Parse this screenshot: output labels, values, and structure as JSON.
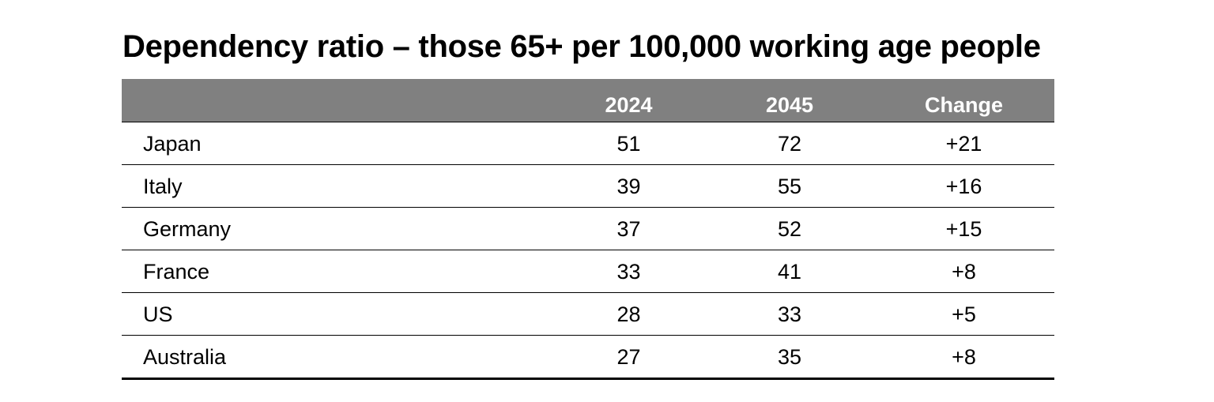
{
  "title": "Dependency ratio – those 65+ per 100,000 working age people",
  "colors": {
    "header_bg": "#808080",
    "header_text": "#ffffff",
    "rule": "#000000"
  },
  "chart_data": {
    "type": "table",
    "title": "Dependency ratio – those 65+ per 100,000 working age people",
    "columns": [
      "",
      "2024",
      "2045",
      "Change"
    ],
    "rows": [
      {
        "country": "Japan",
        "y2024": "51",
        "y2045": "72",
        "change": "+21"
      },
      {
        "country": "Italy",
        "y2024": "39",
        "y2045": "55",
        "change": "+16"
      },
      {
        "country": "Germany",
        "y2024": "37",
        "y2045": "52",
        "change": "+15"
      },
      {
        "country": "France",
        "y2024": "33",
        "y2045": "41",
        "change": "+8"
      },
      {
        "country": "US",
        "y2024": "28",
        "y2045": "33",
        "change": "+5"
      },
      {
        "country": "Australia",
        "y2024": "27",
        "y2045": "35",
        "change": "+8"
      }
    ]
  }
}
